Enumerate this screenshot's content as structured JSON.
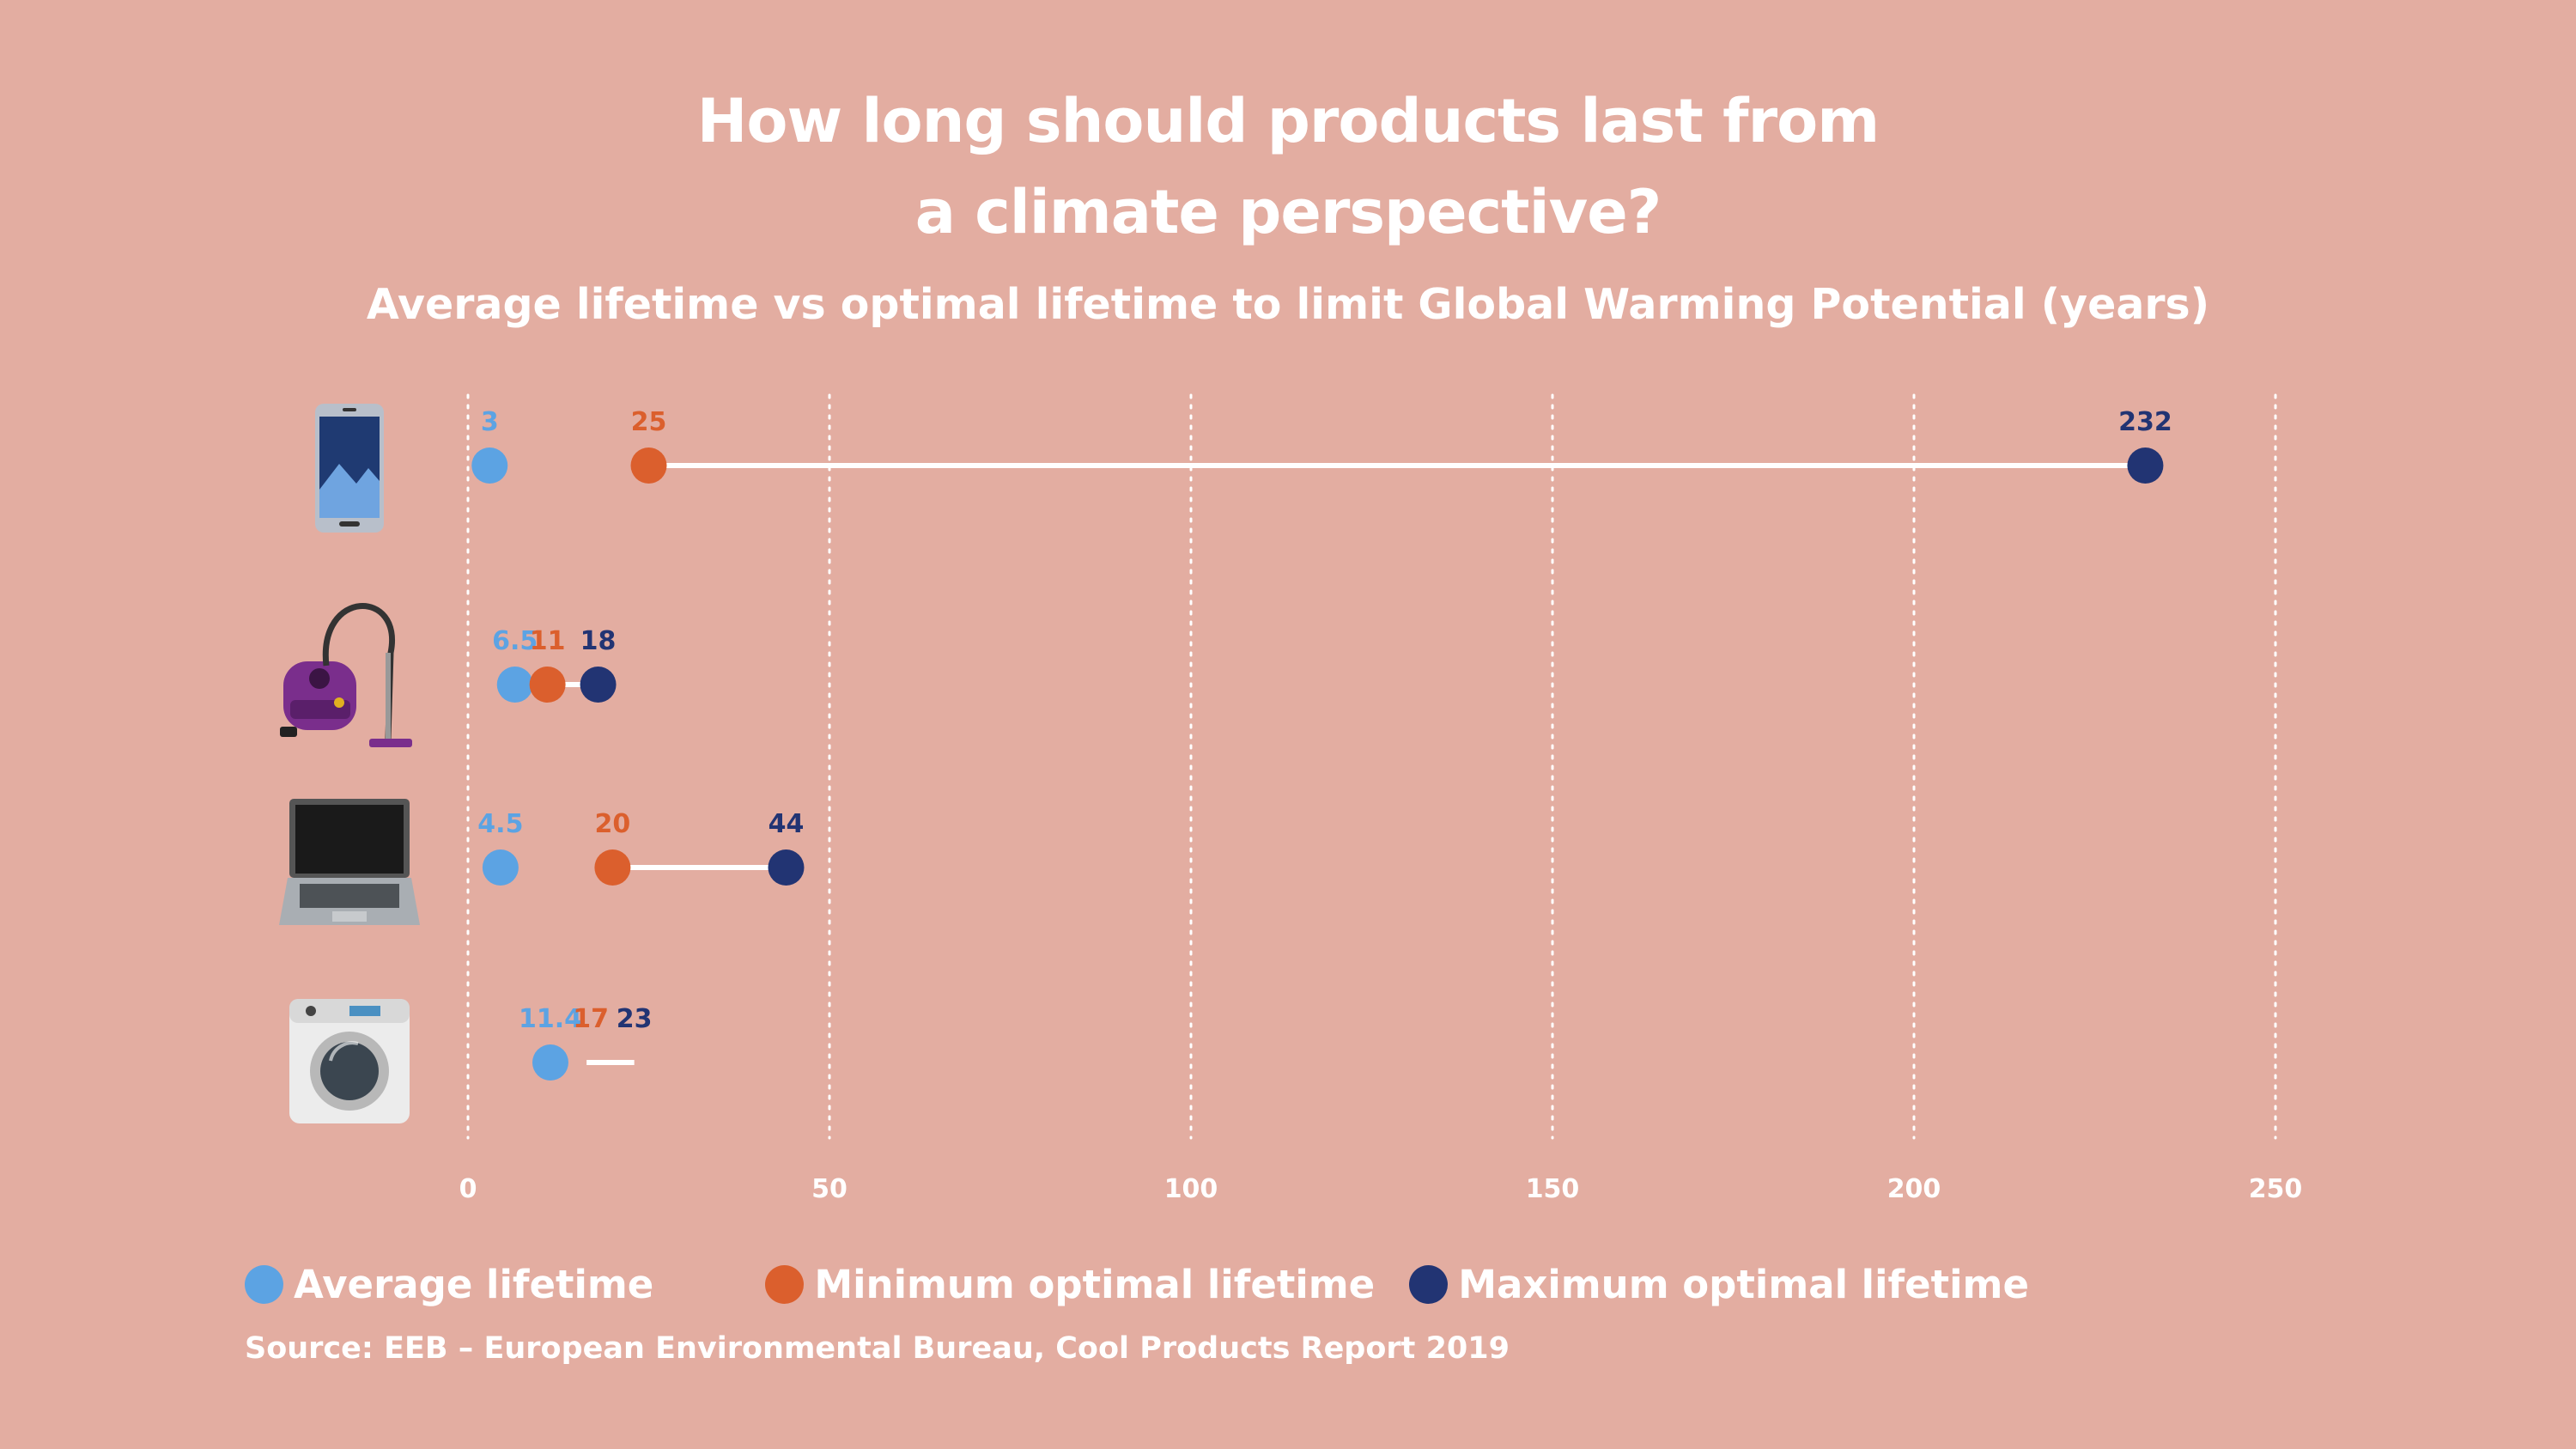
{
  "title_line1": "How long should products last from",
  "title_line2": "a climate perspective?",
  "subtitle": "Average lifetime vs optimal lifetime to limit Global Warming Potential (years)",
  "source": "Source: EEB – European Environmental Bureau, Cool Products Report 2019",
  "colors": {
    "background": "#e3ada1",
    "average": "#5ca3e3",
    "minimum": "#db5f2d",
    "maximum": "#223473",
    "text": "#ffffff"
  },
  "chart_data": {
    "type": "dot-range",
    "title": "How long should products last from a climate perspective?",
    "subtitle": "Average lifetime vs optimal lifetime to limit Global Warming Potential (years)",
    "categories": [
      "smartphone",
      "vacuum cleaner",
      "laptop",
      "washing machine"
    ],
    "category_icons": [
      "smartphone-icon",
      "vacuum-cleaner-icon",
      "laptop-icon",
      "washing-machine-icon"
    ],
    "series": [
      {
        "name": "Average lifetime",
        "key": "average",
        "values": [
          3,
          6.5,
          4.5,
          11.4
        ],
        "labels": [
          "3",
          "6.5",
          "4.5",
          "11.4"
        ]
      },
      {
        "name": "Minimum optimal lifetime",
        "key": "minimum",
        "values": [
          25,
          11,
          20,
          17
        ],
        "labels": [
          "25",
          "11",
          "20",
          "17"
        ]
      },
      {
        "name": "Maximum optimal lifetime",
        "key": "maximum",
        "values": [
          232,
          18,
          44,
          23
        ],
        "labels": [
          "232",
          "18",
          "44",
          "23"
        ]
      }
    ],
    "hidden_dots": [
      [
        3,
        "minimum"
      ],
      [
        3,
        "maximum"
      ]
    ],
    "xlim": [
      0,
      250
    ],
    "xticks": [
      0,
      50,
      100,
      150,
      200,
      250
    ],
    "xtick_labels": [
      "0",
      "50",
      "100",
      "150",
      "200",
      "250"
    ],
    "grid": "vertical dotted",
    "legend": "bottom-left"
  }
}
